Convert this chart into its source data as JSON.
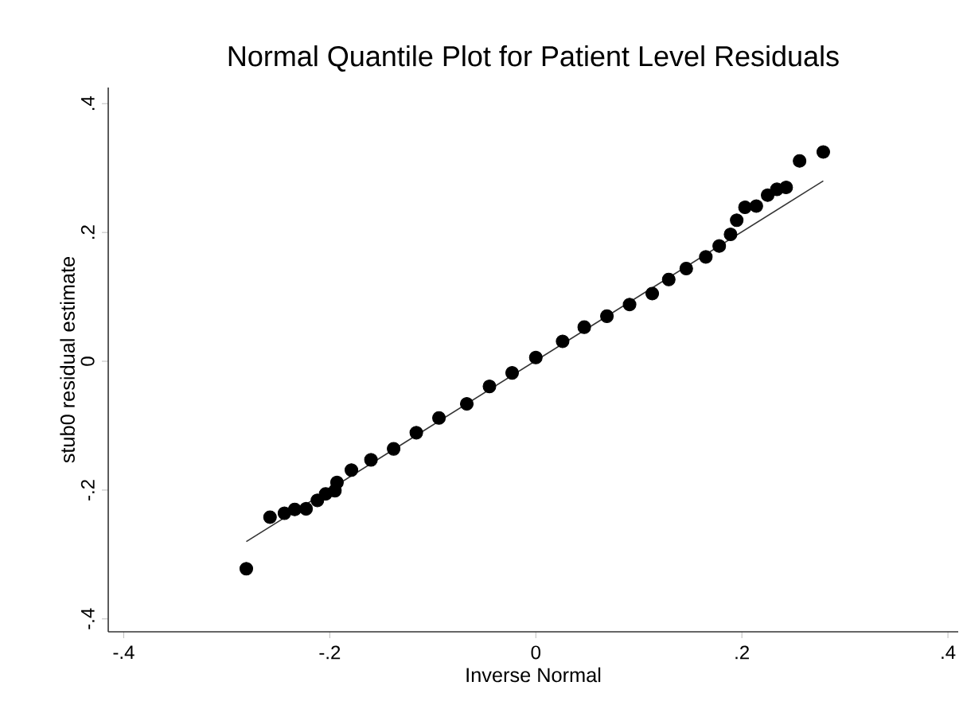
{
  "chart_data": {
    "type": "scatter",
    "title": "Normal Quantile Plot for Patient Level Residuals",
    "xlabel": "Inverse Normal",
    "ylabel": "stub0 residual estimate",
    "xlim": [
      -0.415,
      0.41
    ],
    "ylim": [
      -0.42,
      0.425
    ],
    "xticks": [
      {
        "value": -0.4,
        "label": "-.4"
      },
      {
        "value": -0.2,
        "label": "-.2"
      },
      {
        "value": 0,
        "label": "0"
      },
      {
        "value": 0.2,
        "label": ".2"
      },
      {
        "value": 0.4,
        "label": ".4"
      }
    ],
    "yticks": [
      {
        "value": -0.4,
        "label": "-.4"
      },
      {
        "value": -0.2,
        "label": "-.2"
      },
      {
        "value": 0,
        "label": "0"
      },
      {
        "value": 0.2,
        "label": ".2"
      },
      {
        "value": 0.4,
        "label": ".4"
      }
    ],
    "grid": false,
    "series": [
      {
        "marker": "circle",
        "color": "#000000",
        "x": [
          -0.281,
          -0.258,
          -0.244,
          -0.234,
          -0.223,
          -0.212,
          -0.204,
          -0.195,
          -0.193,
          -0.179,
          -0.16,
          -0.138,
          -0.116,
          -0.094,
          -0.067,
          -0.045,
          -0.023,
          0,
          0.026,
          0.047,
          0.069,
          0.091,
          0.113,
          0.129,
          0.146,
          0.165,
          0.178,
          0.189,
          0.195,
          0.203,
          0.214,
          0.225,
          0.234,
          0.243,
          0.256,
          0.279
        ],
        "values": [
          -0.322,
          -0.242,
          -0.236,
          -0.23,
          -0.229,
          -0.216,
          -0.206,
          -0.201,
          -0.188,
          -0.169,
          -0.153,
          -0.136,
          -0.111,
          -0.088,
          -0.066,
          -0.039,
          -0.018,
          0.006,
          0.031,
          0.053,
          0.07,
          0.088,
          0.105,
          0.127,
          0.144,
          0.162,
          0.179,
          0.197,
          0.219,
          0.239,
          0.241,
          0.258,
          0.267,
          0.27,
          0.311,
          0.325
        ]
      },
      {
        "type": "line",
        "marker": "none",
        "line_style": "solid",
        "color": "#333333",
        "x": [
          -0.281,
          0.279
        ],
        "values": [
          -0.28,
          0.28
        ]
      }
    ]
  }
}
